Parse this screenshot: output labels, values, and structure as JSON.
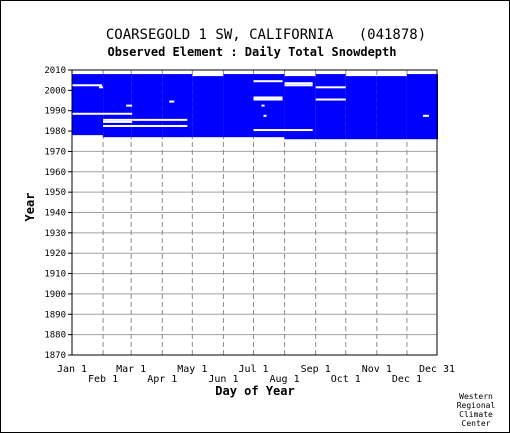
{
  "chart_data": {
    "type": "heatmap",
    "title": "COARSEGOLD 1 SW, CALIFORNIA   (041878)",
    "subtitle": "Observed Element : Daily Total Snowdepth",
    "xlabel": "Day of Year",
    "ylabel": "Year",
    "x_ticks_upper": [
      "Jan 1",
      "Mar 1",
      "May 1",
      "Jul 1",
      "Sep 1",
      "Nov 1",
      "Dec 31"
    ],
    "x_ticks_lower": [
      "Feb 1",
      "Apr 1",
      "Jun 1",
      "Aug 1",
      "Oct 1",
      "Dec 1"
    ],
    "y_ticks": [
      1870,
      1880,
      1890,
      1900,
      1910,
      1920,
      1930,
      1940,
      1950,
      1960,
      1970,
      1980,
      1990,
      2000,
      2010
    ],
    "ylim": [
      1870,
      2010
    ],
    "xlim_day_of_year": [
      1,
      365
    ],
    "grid": true,
    "data_color": "#0000ff",
    "period_of_record": {
      "start_year": 1977,
      "end_year": 2007
    },
    "coverage_by_month": [
      {
        "month": "Jan",
        "start_year": 1978,
        "end_year": 2007
      },
      {
        "month": "Feb",
        "start_year": 1977,
        "end_year": 2007
      },
      {
        "month": "Mar",
        "start_year": 1977,
        "end_year": 2007
      },
      {
        "month": "Apr",
        "start_year": 1977,
        "end_year": 2007
      },
      {
        "month": "May",
        "start_year": 1977,
        "end_year": 2006
      },
      {
        "month": "Jun",
        "start_year": 1977,
        "end_year": 2007
      },
      {
        "month": "Jul",
        "start_year": 1977,
        "end_year": 2007
      },
      {
        "month": "Aug",
        "start_year": 1976,
        "end_year": 2006
      },
      {
        "month": "Sep",
        "start_year": 1976,
        "end_year": 2007
      },
      {
        "month": "Oct",
        "start_year": 1976,
        "end_year": 2006
      },
      {
        "month": "Nov",
        "start_year": 1976,
        "end_year": 2006
      },
      {
        "month": "Dec",
        "start_year": 1976,
        "end_year": 2007
      }
    ],
    "missing_segments": [
      {
        "year": 2002,
        "start_day": 1,
        "end_day": 30
      },
      {
        "year": 2001,
        "start_day": 28,
        "end_day": 31
      },
      {
        "year": 1992,
        "start_day": 55,
        "end_day": 60
      },
      {
        "year": 1988,
        "start_day": 1,
        "end_day": 60
      },
      {
        "year": 1985,
        "start_day": 32,
        "end_day": 60
      },
      {
        "year": 1984,
        "start_day": 32,
        "end_day": 60
      },
      {
        "year": 1985,
        "start_day": 61,
        "end_day": 115
      },
      {
        "year": 1982,
        "start_day": 32,
        "end_day": 115
      },
      {
        "year": 1994,
        "start_day": 98,
        "end_day": 102
      },
      {
        "year": 1992,
        "start_day": 190,
        "end_day": 192
      },
      {
        "year": 1987,
        "start_day": 192,
        "end_day": 194
      },
      {
        "year": 2004,
        "start_day": 182,
        "end_day": 210
      },
      {
        "year": 1996,
        "start_day": 182,
        "end_day": 210
      },
      {
        "year": 1995,
        "start_day": 182,
        "end_day": 210
      },
      {
        "year": 1980,
        "start_day": 182,
        "end_day": 240
      },
      {
        "year": 2003,
        "start_day": 213,
        "end_day": 240
      },
      {
        "year": 2002,
        "start_day": 213,
        "end_day": 240
      },
      {
        "year": 2001,
        "start_day": 244,
        "end_day": 273
      },
      {
        "year": 1995,
        "start_day": 244,
        "end_day": 273
      },
      {
        "year": 1987,
        "start_day": 351,
        "end_day": 356
      }
    ]
  },
  "credit": [
    "Western",
    "Regional",
    "Climate",
    "Center"
  ]
}
